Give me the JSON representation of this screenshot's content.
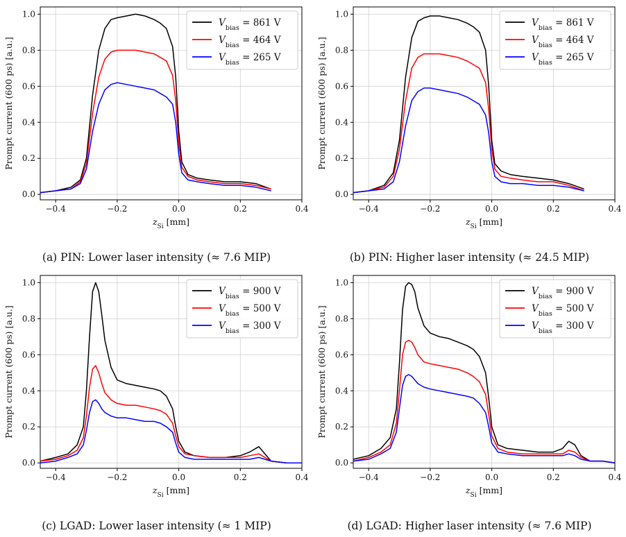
{
  "chart_data": [
    {
      "type": "line",
      "caption": "(a) PIN: Lower laser intensity (≈ 7.6 MIP)",
      "xlabel": "z_Si [mm]",
      "ylabel": "Prompt current (600 ps) [a.u.]",
      "xlim": [
        -0.45,
        0.4
      ],
      "ylim": [
        -0.03,
        1.04
      ],
      "xticks": [
        -0.4,
        -0.2,
        0.0,
        0.2,
        0.4
      ],
      "xtick_labels": [
        "−0.4",
        "−0.2",
        "0.0",
        "0.2",
        "0.4"
      ],
      "yticks": [
        0.0,
        0.2,
        0.4,
        0.6,
        0.8,
        1.0
      ],
      "ytick_labels": [
        "0.0",
        "0.2",
        "0.4",
        "0.6",
        "0.8",
        "1.0"
      ],
      "grid": true,
      "legend_position": "top-right",
      "series": [
        {
          "name": "V_bias = 861 V",
          "color": "#000000",
          "x": [
            -0.45,
            -0.4,
            -0.35,
            -0.32,
            -0.3,
            -0.28,
            -0.26,
            -0.24,
            -0.22,
            -0.2,
            -0.17,
            -0.14,
            -0.11,
            -0.08,
            -0.06,
            -0.04,
            -0.02,
            -0.01,
            0.0,
            0.01,
            0.03,
            0.06,
            0.1,
            0.15,
            0.2,
            0.25,
            0.3
          ],
          "y": [
            0.01,
            0.02,
            0.04,
            0.08,
            0.2,
            0.55,
            0.8,
            0.92,
            0.97,
            0.98,
            0.99,
            1.0,
            0.99,
            0.97,
            0.95,
            0.92,
            0.82,
            0.65,
            0.35,
            0.18,
            0.11,
            0.09,
            0.08,
            0.07,
            0.07,
            0.06,
            0.03
          ]
        },
        {
          "name": "V_bias = 464 V",
          "color": "#ff0000",
          "x": [
            -0.45,
            -0.4,
            -0.35,
            -0.32,
            -0.3,
            -0.28,
            -0.26,
            -0.24,
            -0.22,
            -0.2,
            -0.17,
            -0.14,
            -0.11,
            -0.08,
            -0.06,
            -0.04,
            -0.02,
            -0.01,
            0.0,
            0.01,
            0.03,
            0.06,
            0.1,
            0.15,
            0.2,
            0.25,
            0.3
          ],
          "y": [
            0.01,
            0.02,
            0.03,
            0.07,
            0.17,
            0.45,
            0.65,
            0.75,
            0.79,
            0.8,
            0.8,
            0.8,
            0.79,
            0.78,
            0.76,
            0.74,
            0.66,
            0.52,
            0.28,
            0.15,
            0.1,
            0.08,
            0.07,
            0.06,
            0.06,
            0.05,
            0.03
          ]
        },
        {
          "name": "V_bias = 265 V",
          "color": "#0000ff",
          "x": [
            -0.45,
            -0.4,
            -0.35,
            -0.32,
            -0.3,
            -0.28,
            -0.26,
            -0.24,
            -0.22,
            -0.2,
            -0.17,
            -0.14,
            -0.11,
            -0.08,
            -0.06,
            -0.04,
            -0.02,
            -0.01,
            0.0,
            0.01,
            0.03,
            0.06,
            0.1,
            0.15,
            0.2,
            0.25,
            0.3
          ],
          "y": [
            0.01,
            0.02,
            0.03,
            0.06,
            0.14,
            0.35,
            0.5,
            0.58,
            0.61,
            0.62,
            0.61,
            0.6,
            0.59,
            0.58,
            0.56,
            0.54,
            0.5,
            0.4,
            0.22,
            0.12,
            0.08,
            0.07,
            0.06,
            0.05,
            0.05,
            0.04,
            0.02
          ]
        }
      ]
    },
    {
      "type": "line",
      "caption": "(b) PIN: Higher laser intensity (≈ 24.5 MIP)",
      "xlabel": "z_Si [mm]",
      "ylabel": "Prompt current (600 ps) [a.u.]",
      "xlim": [
        -0.45,
        0.4
      ],
      "ylim": [
        -0.03,
        1.04
      ],
      "xticks": [
        -0.4,
        -0.2,
        0.0,
        0.2,
        0.4
      ],
      "xtick_labels": [
        "−0.4",
        "−0.2",
        "0.0",
        "0.2",
        "0.4"
      ],
      "yticks": [
        0.0,
        0.2,
        0.4,
        0.6,
        0.8,
        1.0
      ],
      "ytick_labels": [
        "0.0",
        "0.2",
        "0.4",
        "0.6",
        "0.8",
        "1.0"
      ],
      "grid": true,
      "legend_position": "top-right",
      "series": [
        {
          "name": "V_bias = 861 V",
          "color": "#000000",
          "x": [
            -0.45,
            -0.4,
            -0.35,
            -0.32,
            -0.3,
            -0.28,
            -0.26,
            -0.24,
            -0.22,
            -0.2,
            -0.17,
            -0.14,
            -0.11,
            -0.08,
            -0.06,
            -0.04,
            -0.02,
            -0.01,
            0.0,
            0.01,
            0.03,
            0.06,
            0.1,
            0.15,
            0.2,
            0.25,
            0.3
          ],
          "y": [
            0.01,
            0.02,
            0.05,
            0.12,
            0.3,
            0.65,
            0.87,
            0.96,
            0.98,
            0.99,
            0.99,
            0.98,
            0.97,
            0.95,
            0.93,
            0.9,
            0.8,
            0.6,
            0.3,
            0.17,
            0.13,
            0.11,
            0.1,
            0.09,
            0.08,
            0.06,
            0.03
          ]
        },
        {
          "name": "V_bias = 464 V",
          "color": "#ff0000",
          "x": [
            -0.45,
            -0.4,
            -0.35,
            -0.32,
            -0.3,
            -0.28,
            -0.26,
            -0.24,
            -0.22,
            -0.2,
            -0.17,
            -0.14,
            -0.11,
            -0.08,
            -0.06,
            -0.04,
            -0.02,
            -0.01,
            0.0,
            0.01,
            0.03,
            0.06,
            0.1,
            0.15,
            0.2,
            0.25,
            0.3
          ],
          "y": [
            0.01,
            0.02,
            0.04,
            0.1,
            0.25,
            0.52,
            0.7,
            0.76,
            0.78,
            0.78,
            0.78,
            0.77,
            0.76,
            0.74,
            0.72,
            0.7,
            0.62,
            0.47,
            0.25,
            0.14,
            0.1,
            0.09,
            0.08,
            0.07,
            0.07,
            0.05,
            0.02
          ]
        },
        {
          "name": "V_bias = 265 V",
          "color": "#0000ff",
          "x": [
            -0.45,
            -0.4,
            -0.35,
            -0.32,
            -0.3,
            -0.28,
            -0.26,
            -0.24,
            -0.22,
            -0.2,
            -0.17,
            -0.14,
            -0.11,
            -0.08,
            -0.06,
            -0.04,
            -0.02,
            -0.01,
            0.0,
            0.01,
            0.03,
            0.06,
            0.1,
            0.15,
            0.2,
            0.25,
            0.3
          ],
          "y": [
            0.01,
            0.02,
            0.03,
            0.07,
            0.18,
            0.38,
            0.52,
            0.57,
            0.59,
            0.59,
            0.58,
            0.57,
            0.56,
            0.54,
            0.52,
            0.5,
            0.44,
            0.34,
            0.18,
            0.1,
            0.07,
            0.06,
            0.06,
            0.05,
            0.05,
            0.04,
            0.02
          ]
        }
      ]
    },
    {
      "type": "line",
      "caption": "(c) LGAD: Lower laser intensity (≈ 1 MIP)",
      "xlabel": "z_Si [mm]",
      "ylabel": "Prompt current (600 ps) [a.u.]",
      "xlim": [
        -0.45,
        0.4
      ],
      "ylim": [
        -0.03,
        1.04
      ],
      "xticks": [
        -0.4,
        -0.2,
        0.0,
        0.2,
        0.4
      ],
      "xtick_labels": [
        "−0.4",
        "−0.2",
        "0.0",
        "0.2",
        "0.4"
      ],
      "yticks": [
        0.0,
        0.2,
        0.4,
        0.6,
        0.8,
        1.0
      ],
      "ytick_labels": [
        "0.0",
        "0.2",
        "0.4",
        "0.6",
        "0.8",
        "1.0"
      ],
      "grid": true,
      "legend_position": "top-right",
      "series": [
        {
          "name": "V_bias = 900 V",
          "color": "#000000",
          "x": [
            -0.45,
            -0.4,
            -0.36,
            -0.33,
            -0.31,
            -0.3,
            -0.29,
            -0.28,
            -0.27,
            -0.26,
            -0.25,
            -0.24,
            -0.22,
            -0.2,
            -0.17,
            -0.14,
            -0.11,
            -0.08,
            -0.06,
            -0.04,
            -0.02,
            -0.01,
            0.0,
            0.02,
            0.05,
            0.1,
            0.15,
            0.2,
            0.23,
            0.26,
            0.28,
            0.3,
            0.35,
            0.4
          ],
          "y": [
            0.01,
            0.03,
            0.05,
            0.1,
            0.2,
            0.4,
            0.7,
            0.95,
            1.0,
            0.95,
            0.82,
            0.68,
            0.53,
            0.46,
            0.44,
            0.43,
            0.42,
            0.41,
            0.4,
            0.37,
            0.3,
            0.2,
            0.12,
            0.06,
            0.04,
            0.03,
            0.03,
            0.04,
            0.06,
            0.09,
            0.05,
            0.01,
            0.0,
            0.0
          ]
        },
        {
          "name": "V_bias = 500 V",
          "color": "#ff0000",
          "x": [
            -0.45,
            -0.4,
            -0.36,
            -0.33,
            -0.31,
            -0.3,
            -0.29,
            -0.28,
            -0.27,
            -0.26,
            -0.25,
            -0.24,
            -0.22,
            -0.2,
            -0.17,
            -0.14,
            -0.11,
            -0.08,
            -0.06,
            -0.04,
            -0.02,
            -0.01,
            0.0,
            0.02,
            0.05,
            0.1,
            0.15,
            0.2,
            0.23,
            0.26,
            0.28,
            0.3,
            0.35,
            0.4
          ],
          "y": [
            0.01,
            0.02,
            0.04,
            0.07,
            0.14,
            0.26,
            0.42,
            0.52,
            0.54,
            0.5,
            0.44,
            0.39,
            0.35,
            0.33,
            0.32,
            0.32,
            0.31,
            0.3,
            0.29,
            0.27,
            0.22,
            0.15,
            0.09,
            0.05,
            0.04,
            0.03,
            0.03,
            0.03,
            0.04,
            0.05,
            0.03,
            0.01,
            0.0,
            0.0
          ]
        },
        {
          "name": "V_bias = 300 V",
          "color": "#0000ff",
          "x": [
            -0.45,
            -0.4,
            -0.36,
            -0.33,
            -0.31,
            -0.3,
            -0.29,
            -0.28,
            -0.27,
            -0.26,
            -0.25,
            -0.24,
            -0.22,
            -0.2,
            -0.17,
            -0.14,
            -0.11,
            -0.08,
            -0.06,
            -0.04,
            -0.02,
            -0.01,
            0.0,
            0.02,
            0.05,
            0.1,
            0.15,
            0.2,
            0.23,
            0.26,
            0.28,
            0.3,
            0.35,
            0.4
          ],
          "y": [
            0.0,
            0.01,
            0.03,
            0.05,
            0.1,
            0.18,
            0.28,
            0.34,
            0.35,
            0.33,
            0.3,
            0.28,
            0.26,
            0.25,
            0.25,
            0.24,
            0.23,
            0.23,
            0.22,
            0.2,
            0.17,
            0.11,
            0.06,
            0.03,
            0.02,
            0.02,
            0.02,
            0.02,
            0.02,
            0.03,
            0.02,
            0.01,
            0.0,
            0.0
          ]
        }
      ]
    },
    {
      "type": "line",
      "caption": "(d) LGAD: Higher laser intensity (≈ 7.6 MIP)",
      "xlabel": "z_Si [mm]",
      "ylabel": "Prompt current (600 ps) [a.u.]",
      "xlim": [
        -0.45,
        0.4
      ],
      "ylim": [
        -0.03,
        1.04
      ],
      "xticks": [
        -0.4,
        -0.2,
        0.0,
        0.2,
        0.4
      ],
      "xtick_labels": [
        "−0.4",
        "−0.2",
        "0.0",
        "0.2",
        "0.4"
      ],
      "yticks": [
        0.0,
        0.2,
        0.4,
        0.6,
        0.8,
        1.0
      ],
      "ytick_labels": [
        "0.0",
        "0.2",
        "0.4",
        "0.6",
        "0.8",
        "1.0"
      ],
      "grid": true,
      "legend_position": "top-right",
      "series": [
        {
          "name": "V_bias = 900 V",
          "color": "#000000",
          "x": [
            -0.45,
            -0.4,
            -0.36,
            -0.33,
            -0.31,
            -0.3,
            -0.29,
            -0.28,
            -0.27,
            -0.26,
            -0.25,
            -0.24,
            -0.22,
            -0.2,
            -0.17,
            -0.14,
            -0.11,
            -0.08,
            -0.06,
            -0.04,
            -0.02,
            -0.01,
            0.0,
            0.02,
            0.05,
            0.1,
            0.15,
            0.2,
            0.23,
            0.25,
            0.27,
            0.29,
            0.32,
            0.36,
            0.4
          ],
          "y": [
            0.02,
            0.04,
            0.08,
            0.14,
            0.3,
            0.55,
            0.85,
            0.98,
            1.0,
            0.99,
            0.95,
            0.86,
            0.76,
            0.72,
            0.7,
            0.69,
            0.67,
            0.65,
            0.63,
            0.59,
            0.5,
            0.36,
            0.2,
            0.1,
            0.08,
            0.07,
            0.06,
            0.06,
            0.08,
            0.12,
            0.1,
            0.04,
            0.01,
            0.01,
            0.0
          ]
        },
        {
          "name": "V_bias = 500 V",
          "color": "#ff0000",
          "x": [
            -0.45,
            -0.4,
            -0.36,
            -0.33,
            -0.31,
            -0.3,
            -0.29,
            -0.28,
            -0.27,
            -0.26,
            -0.25,
            -0.24,
            -0.22,
            -0.2,
            -0.17,
            -0.14,
            -0.11,
            -0.08,
            -0.06,
            -0.04,
            -0.02,
            -0.01,
            0.0,
            0.02,
            0.05,
            0.1,
            0.15,
            0.2,
            0.23,
            0.25,
            0.27,
            0.29,
            0.32,
            0.36,
            0.4
          ],
          "y": [
            0.01,
            0.03,
            0.06,
            0.1,
            0.22,
            0.4,
            0.6,
            0.67,
            0.68,
            0.67,
            0.64,
            0.6,
            0.56,
            0.55,
            0.54,
            0.53,
            0.52,
            0.5,
            0.48,
            0.45,
            0.38,
            0.27,
            0.15,
            0.08,
            0.06,
            0.05,
            0.05,
            0.05,
            0.05,
            0.07,
            0.06,
            0.03,
            0.01,
            0.01,
            0.0
          ]
        },
        {
          "name": "V_bias = 300 V",
          "color": "#0000ff",
          "x": [
            -0.45,
            -0.4,
            -0.36,
            -0.33,
            -0.31,
            -0.3,
            -0.29,
            -0.28,
            -0.27,
            -0.26,
            -0.25,
            -0.24,
            -0.22,
            -0.2,
            -0.17,
            -0.14,
            -0.11,
            -0.08,
            -0.06,
            -0.04,
            -0.02,
            -0.01,
            0.0,
            0.02,
            0.05,
            0.1,
            0.15,
            0.2,
            0.23,
            0.25,
            0.27,
            0.29,
            0.32,
            0.36,
            0.4
          ],
          "y": [
            0.01,
            0.02,
            0.05,
            0.08,
            0.17,
            0.3,
            0.43,
            0.48,
            0.49,
            0.48,
            0.46,
            0.44,
            0.42,
            0.41,
            0.4,
            0.39,
            0.38,
            0.37,
            0.36,
            0.33,
            0.28,
            0.2,
            0.11,
            0.06,
            0.05,
            0.04,
            0.04,
            0.04,
            0.04,
            0.05,
            0.04,
            0.02,
            0.01,
            0.01,
            0.0
          ]
        }
      ]
    }
  ]
}
